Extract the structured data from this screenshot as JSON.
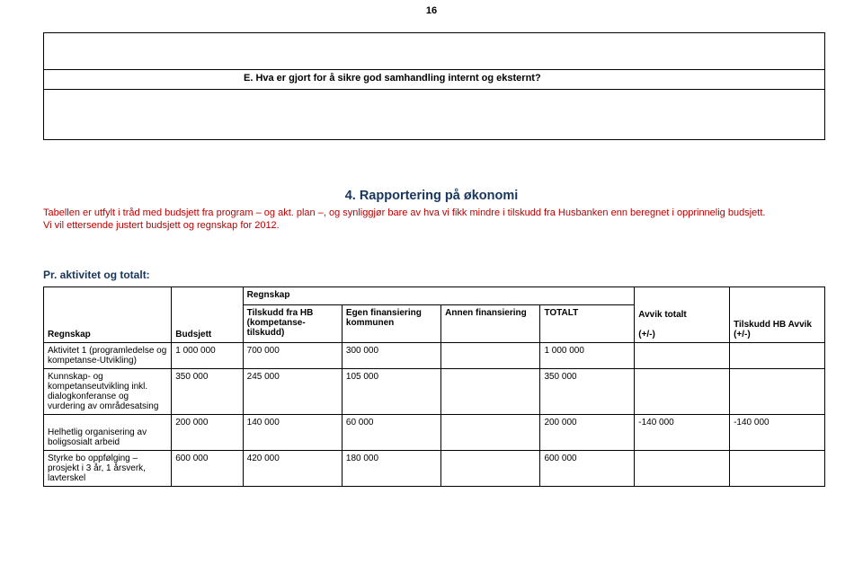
{
  "page_number": "16",
  "question_e": "E.   Hva er gjort for å sikre god samhandling internt og eksternt?",
  "section4": {
    "title": "4. Rapportering på økonomi",
    "intro_red": "Tabellen er utfylt i tråd med budsjett fra program – og akt. plan –, og synliggjør bare av hva vi fikk mindre i tilskudd fra Husbanken enn beregnet i opprinnelig budsjett.\nVi vil ettersende justert budsjett og regnskap for 2012.",
    "subheading": "Pr. aktivitet og totalt:"
  },
  "table": {
    "group_label": "Regnskap",
    "headers": {
      "regnskap": "Regnskap",
      "budsjett": "Budsjett",
      "tilskudd_hb": "Tilskudd fra HB (kompetanse-tilskudd)",
      "egen": "Egen finansiering kommunen",
      "annen": "Annen finansiering",
      "totalt": "TOTALT",
      "avvik_totalt": "Avvik totalt\n\n(+/-)",
      "tilskudd_hb_avvik": "Tilskudd HB Avvik\n(+/-)"
    },
    "rows": [
      {
        "label": "Aktivitet 1 (programledelse og kompetanse-Utvikling)",
        "budsjett": "1 000 000",
        "tilskudd_hb": "700 000",
        "egen": "300 000",
        "annen": "",
        "totalt": "1 000 000",
        "avvik_totalt": "",
        "tilskudd_hb_avvik": ""
      },
      {
        "label": "Kunnskap- og kompetanseutvikling inkl. dialogkonferanse og vurdering av områdesatsing",
        "budsjett": "350 000",
        "tilskudd_hb": "245 000",
        "egen": "105 000",
        "annen": "",
        "totalt": "350 000",
        "avvik_totalt": "",
        "tilskudd_hb_avvik": ""
      },
      {
        "label": "\nHelhetlig organisering av boligsosialt arbeid",
        "budsjett": "200 000",
        "tilskudd_hb": "140 000",
        "egen": "60 000",
        "annen": "",
        "totalt": "200 000",
        "avvik_totalt": "-140 000",
        "tilskudd_hb_avvik": "-140 000"
      },
      {
        "label": "Styrke bo oppfølging – prosjekt i 3 år, 1 årsverk, lavterskel",
        "budsjett": "600 000",
        "tilskudd_hb": "420 000",
        "egen": "180 000",
        "annen": "",
        "totalt": "600 000",
        "avvik_totalt": "",
        "tilskudd_hb_avvik": ""
      }
    ]
  },
  "colors": {
    "heading": "#17355d",
    "red_text": "#b90000",
    "border": "#000000",
    "background": "#ffffff"
  }
}
